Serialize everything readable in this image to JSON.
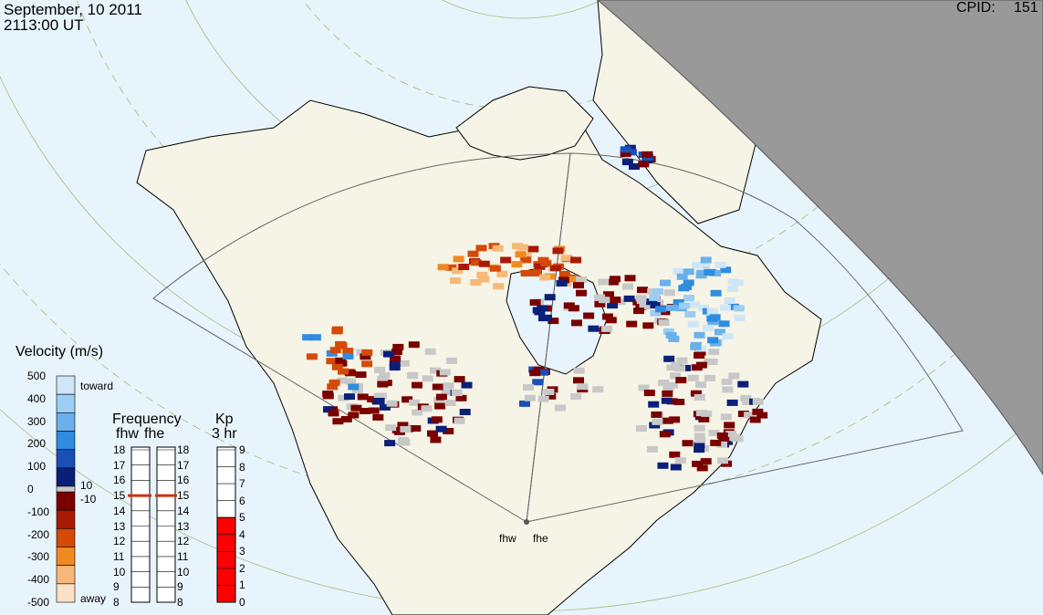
{
  "header": {
    "date": "September, 10 2011",
    "time": "2113:00 UT",
    "cpid_label": "CPID:",
    "cpid_value": "151"
  },
  "velocity_scale": {
    "title": "Velocity (m/s)",
    "ticks": [
      "500",
      "400",
      "300",
      "200",
      "100",
      "0",
      "-100",
      "-200",
      "-300",
      "-400",
      "-500"
    ],
    "toward_label": "toward",
    "away_label": "away",
    "plus_threshold": "10",
    "minus_threshold": "-10",
    "colors": [
      "#cfe6f8",
      "#9ccdf2",
      "#6ab0ec",
      "#2f8ce0",
      "#1a4fb6",
      "#0a1f7a",
      "#7a0000",
      "#a81a06",
      "#d44a06",
      "#f08a20",
      "#f7b878",
      "#fce0c6"
    ],
    "ground_scatter_color": "#c8c8c8"
  },
  "frequency_panel": {
    "title": "Frequency",
    "radars": [
      "fhw",
      "fhe"
    ],
    "ticks": [
      "18",
      "17",
      "16",
      "15",
      "14",
      "13",
      "12",
      "11",
      "10",
      "9",
      "8"
    ],
    "fhw_frequency_mhz": 15,
    "fhe_frequency_mhz": 15
  },
  "kp_panel": {
    "title": "Kp",
    "subtitle": "3 hr",
    "ticks": [
      "9",
      "8",
      "7",
      "6",
      "5",
      "4",
      "3",
      "2",
      "1",
      "0"
    ],
    "value": 5,
    "fill_color": "#ff0000"
  },
  "radar_sites": [
    "fhw",
    "fhe"
  ],
  "colors": {
    "ocean": "#e8f4fb",
    "land": "#f6f4e6",
    "night": "#999999",
    "grid": "#a8ba78"
  }
}
